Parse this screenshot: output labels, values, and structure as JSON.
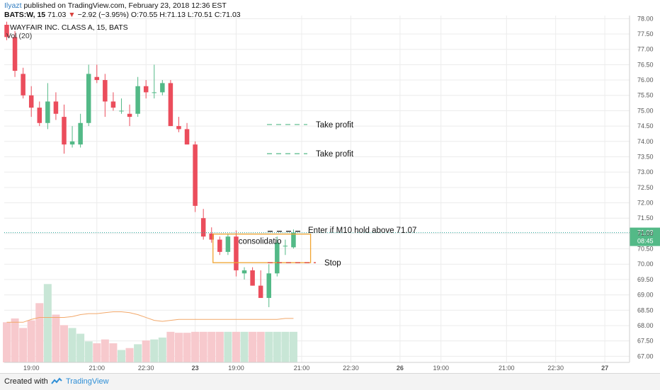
{
  "header": {
    "publisher": "Ilyazt",
    "published_text": "published on TradingView.com, February 23, 2018 12:36 EST",
    "ticker_line": "BATS:W, 15",
    "last_price": "71.03",
    "change": "−2.92 (−3.95%)",
    "ohlc": "O:70.55 H:71.13 L:70.51 C:71.03",
    "chart_title": "WAYFAIR INC. CLASS A, 15, BATS",
    "volume_label": "Vol (20)"
  },
  "footer": {
    "created_with": "Created with",
    "brand": "TradingView"
  },
  "colors": {
    "up": "#53b987",
    "down": "#eb4d5c",
    "vol_up": "#c8e6d6",
    "vol_down": "#f7c9cd",
    "ma": "#f2a86a",
    "box": "#f0a431",
    "price_line": "#26a69a",
    "grid": "#ececec"
  },
  "chart_data": {
    "type": "candlestick",
    "ylim": [
      66.8,
      78.1
    ],
    "y_ticks": [
      "67.00",
      "67.50",
      "68.00",
      "68.50",
      "69.00",
      "69.50",
      "70.00",
      "70.50",
      "71.00",
      "71.50",
      "72.00",
      "72.50",
      "73.00",
      "73.50",
      "74.00",
      "74.50",
      "75.00",
      "75.50",
      "76.00",
      "76.50",
      "77.00",
      "77.50",
      "78.00"
    ],
    "x_ticks": [
      {
        "i": 3,
        "label": "19:00",
        "bold": false
      },
      {
        "i": 11,
        "label": "21:00",
        "bold": false
      },
      {
        "i": 17,
        "label": "22:30",
        "bold": false
      },
      {
        "i": 23,
        "label": "23",
        "bold": true
      },
      {
        "i": 28,
        "label": "19:00",
        "bold": false
      },
      {
        "i": 36,
        "label": "21:00",
        "bold": false
      },
      {
        "i": 42,
        "label": "22:30",
        "bold": false
      },
      {
        "i": 48,
        "label": "26",
        "bold": true
      },
      {
        "i": 53,
        "label": "19:00",
        "bold": false
      },
      {
        "i": 61,
        "label": "21:00",
        "bold": false
      },
      {
        "i": 67,
        "label": "22:30",
        "bold": false
      },
      {
        "i": 73,
        "label": "27",
        "bold": true
      }
    ],
    "candles": [
      {
        "o": 77.8,
        "h": 77.9,
        "l": 77.3,
        "c": 77.4
      },
      {
        "o": 77.4,
        "h": 77.6,
        "l": 76.1,
        "c": 76.3
      },
      {
        "o": 76.2,
        "h": 76.4,
        "l": 75.4,
        "c": 75.5
      },
      {
        "o": 75.5,
        "h": 75.8,
        "l": 74.8,
        "c": 75.1
      },
      {
        "o": 75.1,
        "h": 75.3,
        "l": 74.5,
        "c": 74.6
      },
      {
        "o": 74.6,
        "h": 75.9,
        "l": 74.4,
        "c": 75.3
      },
      {
        "o": 75.3,
        "h": 75.6,
        "l": 74.7,
        "c": 74.9
      },
      {
        "o": 74.8,
        "h": 75.2,
        "l": 73.6,
        "c": 73.9
      },
      {
        "o": 73.9,
        "h": 74.5,
        "l": 73.8,
        "c": 74.0
      },
      {
        "o": 73.9,
        "h": 74.9,
        "l": 73.8,
        "c": 74.6
      },
      {
        "o": 74.6,
        "h": 76.5,
        "l": 74.5,
        "c": 76.2
      },
      {
        "o": 76.1,
        "h": 76.5,
        "l": 75.9,
        "c": 76.0
      },
      {
        "o": 76.0,
        "h": 76.2,
        "l": 74.8,
        "c": 75.3
      },
      {
        "o": 75.3,
        "h": 75.6,
        "l": 75.0,
        "c": 75.1
      },
      {
        "o": 75.0,
        "h": 75.4,
        "l": 74.9,
        "c": 75.0
      },
      {
        "o": 74.9,
        "h": 75.2,
        "l": 74.5,
        "c": 74.8
      },
      {
        "o": 74.9,
        "h": 76.1,
        "l": 74.8,
        "c": 75.8
      },
      {
        "o": 75.8,
        "h": 76.0,
        "l": 75.4,
        "c": 75.6
      },
      {
        "o": 75.6,
        "h": 76.5,
        "l": 75.4,
        "c": 75.6
      },
      {
        "o": 75.6,
        "h": 76.0,
        "l": 75.5,
        "c": 75.9
      },
      {
        "o": 75.9,
        "h": 76.0,
        "l": 74.5,
        "c": 74.5
      },
      {
        "o": 74.5,
        "h": 74.8,
        "l": 74.3,
        "c": 74.4
      },
      {
        "o": 74.4,
        "h": 74.6,
        "l": 73.9,
        "c": 73.9
      },
      {
        "o": 73.9,
        "h": 74.0,
        "l": 71.7,
        "c": 71.9
      },
      {
        "o": 71.5,
        "h": 71.8,
        "l": 70.8,
        "c": 70.9
      },
      {
        "o": 71.0,
        "h": 71.2,
        "l": 70.7,
        "c": 70.8
      },
      {
        "o": 70.8,
        "h": 70.9,
        "l": 70.3,
        "c": 70.4
      },
      {
        "o": 70.4,
        "h": 71.0,
        "l": 70.3,
        "c": 70.9
      },
      {
        "o": 70.9,
        "h": 71.1,
        "l": 69.6,
        "c": 69.8
      },
      {
        "o": 69.7,
        "h": 69.9,
        "l": 69.5,
        "c": 69.8
      },
      {
        "o": 69.8,
        "h": 69.9,
        "l": 69.3,
        "c": 69.3
      },
      {
        "o": 69.3,
        "h": 69.8,
        "l": 68.9,
        "c": 68.9
      },
      {
        "o": 68.9,
        "h": 70.0,
        "l": 68.6,
        "c": 69.7
      },
      {
        "o": 69.7,
        "h": 70.9,
        "l": 69.6,
        "c": 70.7
      },
      {
        "o": 70.6,
        "h": 70.8,
        "l": 70.3,
        "c": 70.6
      },
      {
        "o": 70.55,
        "h": 71.13,
        "l": 70.51,
        "c": 71.03
      }
    ],
    "volume": [
      0.42,
      0.46,
      0.36,
      0.44,
      0.62,
      0.82,
      0.5,
      0.39,
      0.36,
      0.3,
      0.22,
      0.2,
      0.24,
      0.2,
      0.13,
      0.15,
      0.19,
      0.23,
      0.24,
      0.26,
      0.32,
      0.31,
      0.31,
      0.32,
      0.32,
      0.32,
      0.32,
      0.32,
      0.32,
      0.32,
      0.32,
      0.32,
      0.32,
      0.32,
      0.32,
      0.32
    ],
    "volume_ma": [
      0.42,
      0.42,
      0.42,
      0.45,
      0.47,
      0.47,
      0.47,
      0.47,
      0.48,
      0.5,
      0.51,
      0.51,
      0.52,
      0.53,
      0.53,
      0.52,
      0.5,
      0.47,
      0.44,
      0.43,
      0.44,
      0.45,
      0.45,
      0.45,
      0.45,
      0.45,
      0.45,
      0.45,
      0.45,
      0.45,
      0.45,
      0.45,
      0.45,
      0.45,
      0.46,
      0.46
    ],
    "current_price": {
      "value": 71.03,
      "label": "71.03",
      "countdown": "08:45"
    },
    "annotations": {
      "take_profit_1": {
        "y": 74.55,
        "label": "Take profit"
      },
      "take_profit_2": {
        "y": 73.6,
        "label": "Take profit"
      },
      "entry": {
        "y": 71.07,
        "label": "Enter if M10 hold above 71.07"
      },
      "stop": {
        "y": 70.05,
        "label": "Stop"
      },
      "consolidation": {
        "y_top": 70.98,
        "y_bottom": 70.05,
        "label": "consolidatio"
      }
    }
  }
}
